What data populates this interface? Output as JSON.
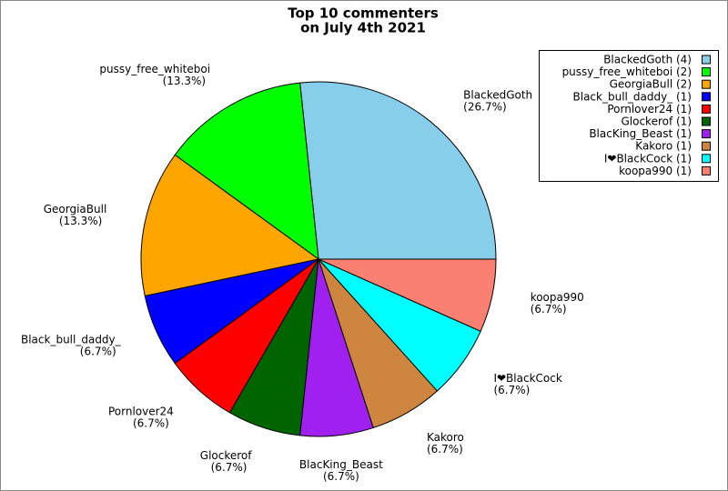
{
  "chart_data": {
    "type": "pie",
    "title": [
      "Top 10 commenters",
      "on July 4th 2021"
    ],
    "categories": [
      "BlackedGoth",
      "pussy_free_whiteboi",
      "GeorgiaBull",
      "Black_bull_daddy_",
      "Pornlover24",
      "Glockerof",
      "BlacKing_Beast",
      "Kakoro",
      "I❤BlackCock",
      "koopa990"
    ],
    "values": [
      4,
      2,
      2,
      1,
      1,
      1,
      1,
      1,
      1,
      1
    ],
    "percent_labels": [
      "(26.7%)",
      "(13.3%)",
      "(13.3%)",
      "(6.7%)",
      "(6.7%)",
      "(6.7%)",
      "(6.7%)",
      "(6.7%)",
      "(6.7%)",
      "(6.7%)"
    ],
    "legend_labels": [
      "BlackedGoth (4)",
      "pussy_free_whiteboi (2)",
      "GeorgiaBull (2)",
      "Black_bull_daddy_ (1)",
      "Pornlover24 (1)",
      "Glockerof (1)",
      "BlacKing_Beast (1)",
      "Kakoro (1)",
      "I❤BlackCock (1)",
      "koopa990 (1)"
    ],
    "colors": [
      "#87ceeb",
      "#00ff00",
      "#ffa500",
      "#0000ff",
      "#ff0000",
      "#006400",
      "#a020f0",
      "#cd853f",
      "#00ffff",
      "#fa8072"
    ],
    "legend": "upper right"
  }
}
